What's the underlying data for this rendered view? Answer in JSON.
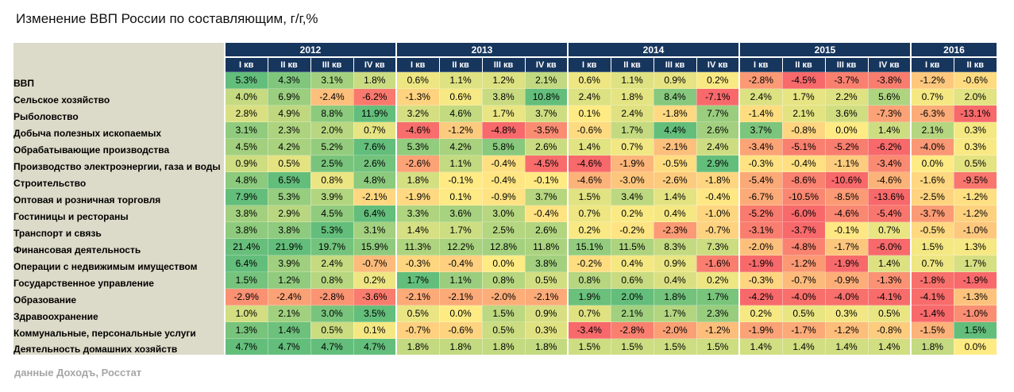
{
  "title": "Изменение ВВП России по составляющим, г/г,%",
  "source": "данные Доходъ, Росстат",
  "chart_data": {
    "type": "heatmap",
    "title": "Изменение ВВП России по составляющим, г/г,%",
    "years": [
      {
        "label": "2012",
        "quarters": [
          "I кв",
          "II кв",
          "III кв",
          "IV кв"
        ]
      },
      {
        "label": "2013",
        "quarters": [
          "I кв",
          "II кв",
          "III кв",
          "IV кв"
        ]
      },
      {
        "label": "2014",
        "quarters": [
          "I кв",
          "II кв",
          "III кв",
          "IV кв"
        ]
      },
      {
        "label": "2015",
        "quarters": [
          "I кв",
          "II кв",
          "III кв",
          "IV кв"
        ]
      },
      {
        "label": "2016",
        "quarters": [
          "I кв",
          "II кв"
        ]
      }
    ],
    "rows": [
      {
        "label": "ВВП",
        "values": [
          "5.3%",
          "4.3%",
          "3.1%",
          "1.8%",
          "0.6%",
          "1.1%",
          "1.2%",
          "2.1%",
          "0.6%",
          "1.1%",
          "0.9%",
          "0.2%",
          "-2.8%",
          "-4.5%",
          "-3.7%",
          "-3.8%",
          "-1.2%",
          "-0.6%"
        ]
      },
      {
        "label": "Сельское хозяйство",
        "values": [
          "4.0%",
          "6.9%",
          "-2.4%",
          "-6.2%",
          "-1.3%",
          "0.6%",
          "3.8%",
          "10.8%",
          "2.4%",
          "1.8%",
          "8.4%",
          "-7.1%",
          "2.4%",
          "1.7%",
          "2.2%",
          "5.6%",
          "0.7%",
          "2.0%"
        ]
      },
      {
        "label": "Рыболовство",
        "values": [
          "2.8%",
          "4.9%",
          "8.8%",
          "11.9%",
          "3.2%",
          "4.6%",
          "1.7%",
          "3.7%",
          "0.1%",
          "2.4%",
          "-1.8%",
          "7.7%",
          "-1.4%",
          "2.1%",
          "3.6%",
          "-7.3%",
          "-6.3%",
          "-13.1%"
        ]
      },
      {
        "label": "Добыча полезных ископаемых",
        "values": [
          "3.1%",
          "2.3%",
          "2.0%",
          "0.7%",
          "-4.6%",
          "-1.2%",
          "-4.8%",
          "-3.5%",
          "-0.6%",
          "1.7%",
          "4.4%",
          "2.6%",
          "3.7%",
          "-0.8%",
          "0.0%",
          "1.4%",
          "2.1%",
          "0.3%"
        ]
      },
      {
        "label": "Обрабатывающие производства",
        "values": [
          "4.5%",
          "4.2%",
          "5.2%",
          "7.6%",
          "5.3%",
          "4.2%",
          "5.8%",
          "2.6%",
          "1.4%",
          "0.7%",
          "-2.1%",
          "2.4%",
          "-3.4%",
          "-5.1%",
          "-5.2%",
          "-6.2%",
          "-4.0%",
          "0.3%"
        ]
      },
      {
        "label": "Производство электроэнергии, газа и воды",
        "values": [
          "0.9%",
          "0.5%",
          "2.5%",
          "2.6%",
          "-2.6%",
          "1.1%",
          "-0.4%",
          "-4.5%",
          "-4.6%",
          "-1.9%",
          "-0.5%",
          "2.9%",
          "-0.3%",
          "-0.4%",
          "-1.1%",
          "-3.4%",
          "0.0%",
          "0.5%"
        ]
      },
      {
        "label": "Строительство",
        "values": [
          "4.8%",
          "6.5%",
          "0.8%",
          "4.8%",
          "1.8%",
          "-0.1%",
          "-0.4%",
          "-0.1%",
          "-4.6%",
          "-3.0%",
          "-2.6%",
          "-1.8%",
          "-5.4%",
          "-8.6%",
          "-10.6%",
          "-4.6%",
          "-1.6%",
          "-9.5%"
        ]
      },
      {
        "label": "Оптовая и розничная торговля",
        "values": [
          "7.9%",
          "5.3%",
          "3.9%",
          "-2.1%",
          "-1.9%",
          "0.1%",
          "-0.9%",
          "3.7%",
          "1.5%",
          "3.4%",
          "1.4%",
          "-0.4%",
          "-6.7%",
          "-10.5%",
          "-8.5%",
          "-13.6%",
          "-2.5%",
          "-1.2%"
        ]
      },
      {
        "label": "Гостиницы и рестораны",
        "values": [
          "3.8%",
          "2.9%",
          "4.5%",
          "6.4%",
          "3.3%",
          "3.6%",
          "3.0%",
          "-0.4%",
          "0.7%",
          "0.2%",
          "0.4%",
          "-1.0%",
          "-5.2%",
          "-6.0%",
          "-4.6%",
          "-5.4%",
          "-3.7%",
          "-1.2%"
        ]
      },
      {
        "label": "Транспорт и связь",
        "values": [
          "3.8%",
          "3.8%",
          "5.3%",
          "3.1%",
          "1.4%",
          "1.7%",
          "2.5%",
          "2.6%",
          "0.2%",
          "-0.2%",
          "-2.3%",
          "-0.7%",
          "-3.1%",
          "-3.7%",
          "-0.1%",
          "0.7%",
          "-0.5%",
          "-1.0%"
        ]
      },
      {
        "label": "Финансовая деятельность",
        "values": [
          "21.4%",
          "21.9%",
          "19.7%",
          "15.9%",
          "11.3%",
          "12.2%",
          "12.8%",
          "11.8%",
          "15.1%",
          "11.5%",
          "8.3%",
          "7.3%",
          "-2.0%",
          "-4.8%",
          "-1.7%",
          "-6.0%",
          "1.5%",
          "1.3%"
        ]
      },
      {
        "label": "Операции с недвижимым имуществом",
        "values": [
          "6.4%",
          "3.9%",
          "2.4%",
          "-0.7%",
          "-0.3%",
          "-0.4%",
          "0.0%",
          "3.8%",
          "-0.2%",
          "0.4%",
          "0.9%",
          "-1.6%",
          "-1.9%",
          "-1.2%",
          "-1.9%",
          "1.4%",
          "0.7%",
          "1.7%"
        ]
      },
      {
        "label": "Государственное управление",
        "values": [
          "1.5%",
          "1.2%",
          "0.8%",
          "0.2%",
          "1.7%",
          "1.1%",
          "0.8%",
          "0.5%",
          "0.8%",
          "0.6%",
          "0.4%",
          "0.2%",
          "-0.3%",
          "-0.7%",
          "-0.9%",
          "-1.3%",
          "-1.8%",
          "-1.9%"
        ]
      },
      {
        "label": "Образование",
        "values": [
          "-2.9%",
          "-2.4%",
          "-2.8%",
          "-3.6%",
          "-2.1%",
          "-2.1%",
          "-2.0%",
          "-2.1%",
          "1.9%",
          "2.0%",
          "1.8%",
          "1.7%",
          "-4.2%",
          "-4.0%",
          "-4.0%",
          "-4.1%",
          "-4.1%",
          "-1.3%"
        ]
      },
      {
        "label": "Здравоохранение",
        "values": [
          "1.0%",
          "2.1%",
          "3.0%",
          "3.5%",
          "0.5%",
          "0.0%",
          "1.5%",
          "0.9%",
          "0.7%",
          "2.1%",
          "1.7%",
          "2.3%",
          "0.2%",
          "0.5%",
          "0.3%",
          "0.5%",
          "-1.4%",
          "-1.0%"
        ]
      },
      {
        "label": "Коммунальные, персональные услуги",
        "values": [
          "1.3%",
          "1.4%",
          "0.5%",
          "0.1%",
          "-0.7%",
          "-0.6%",
          "0.5%",
          "0.3%",
          "-3.4%",
          "-2.8%",
          "-2.0%",
          "-1.2%",
          "-1.9%",
          "-1.7%",
          "-1.2%",
          "-0.8%",
          "-1.5%",
          "1.5%"
        ]
      },
      {
        "label": "Деятельность домашних хозяйств",
        "values": [
          "4.7%",
          "4.7%",
          "4.7%",
          "4.7%",
          "1.8%",
          "1.8%",
          "1.8%",
          "1.8%",
          "1.5%",
          "1.5%",
          "1.5%",
          "1.5%",
          "1.4%",
          "1.4%",
          "1.4%",
          "1.4%",
          "1.8%",
          "0.0%"
        ]
      }
    ],
    "colors": {
      "negative": "#f8696b",
      "neutral": "#ffeb84",
      "positive": "#63be7b",
      "header": "#17365d",
      "label_bg": "#dcdac8"
    }
  }
}
